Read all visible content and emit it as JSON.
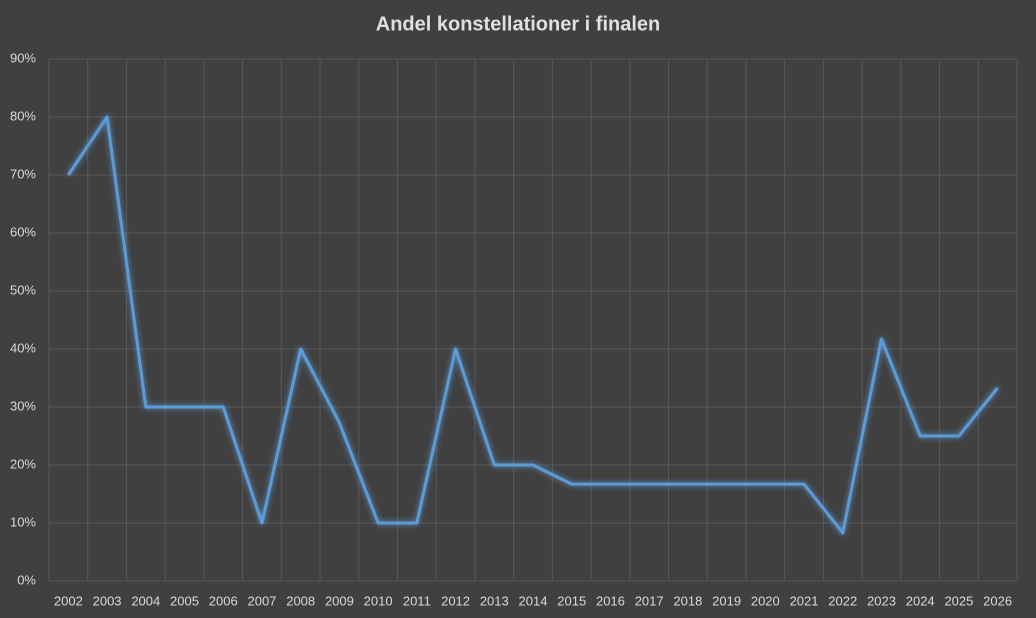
{
  "chart_data": {
    "type": "line",
    "title": "Andel konstellationer i finalen",
    "categories": [
      "2002",
      "2003",
      "2004",
      "2005",
      "2006",
      "2007",
      "2008",
      "2009",
      "2010",
      "2011",
      "2012",
      "2013",
      "2014",
      "2015",
      "2016",
      "2017",
      "2018",
      "2019",
      "2020",
      "2021",
      "2022",
      "2023",
      "2024",
      "2025",
      "2026"
    ],
    "values": [
      70,
      80,
      30,
      30,
      30,
      10,
      40,
      27.3,
      10,
      10,
      40,
      20,
      20,
      16.7,
      16.7,
      16.7,
      16.7,
      16.7,
      16.7,
      16.7,
      8.3,
      41.7,
      25,
      25,
      33.3
    ],
    "color": "#5b9bd5",
    "ylim": [
      0,
      90
    ],
    "yticks": [
      {
        "value": 0,
        "label": "0%"
      },
      {
        "value": 10,
        "label": "10%"
      },
      {
        "value": 20,
        "label": "20%"
      },
      {
        "value": 30,
        "label": "30%"
      },
      {
        "value": 40,
        "label": "40%"
      },
      {
        "value": 50,
        "label": "50%"
      },
      {
        "value": 60,
        "label": "60%"
      },
      {
        "value": 70,
        "label": "70%"
      },
      {
        "value": 80,
        "label": "80%"
      },
      {
        "value": 90,
        "label": "90%"
      }
    ],
    "grid": true
  }
}
